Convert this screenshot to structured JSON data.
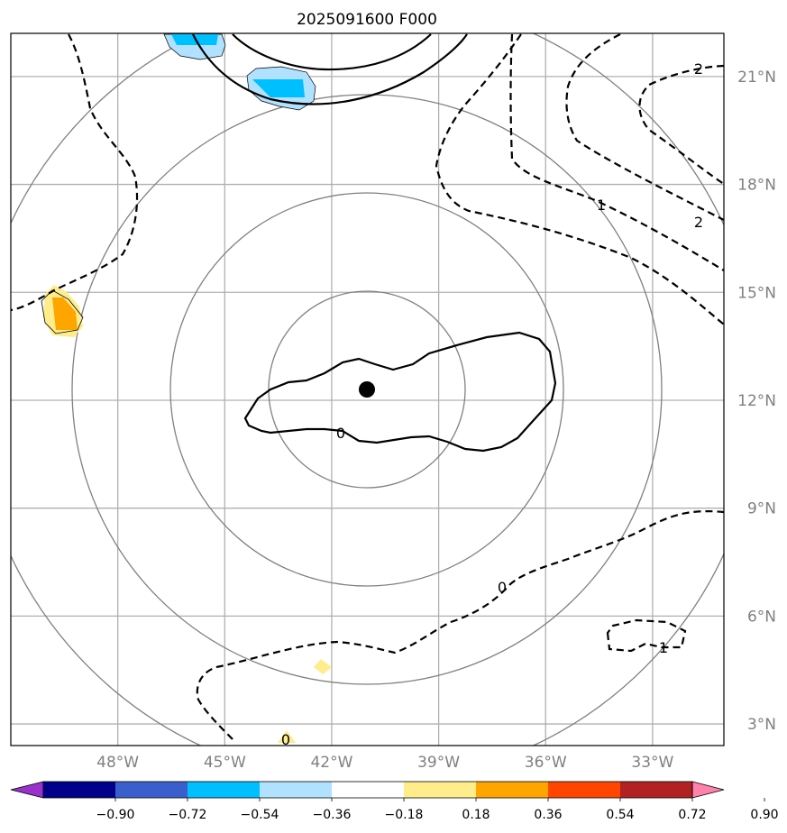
{
  "title": "2025091600 F000",
  "map": {
    "lat_labels": [
      "21°N",
      "18°N",
      "15°N",
      "12°N",
      "9°N",
      "6°N",
      "3°N"
    ],
    "lon_labels": [
      "48°W",
      "45°W",
      "42°W",
      "39°W",
      "36°W",
      "33°W"
    ],
    "lat_range": [
      2.4,
      22.2
    ],
    "lon_range": [
      -51,
      -31
    ],
    "gridlines": true,
    "center_marker": {
      "lon": -40.8,
      "lat": 12.3
    },
    "range_rings_deg": [
      2.75,
      5.5,
      8.25,
      11
    ],
    "contour_labels": [
      "0",
      "0",
      "1",
      "1",
      "2",
      "2",
      "0"
    ]
  },
  "colorbar": {
    "ticks": [
      "−0.90",
      "−0.72",
      "−0.54",
      "−0.36",
      "−0.18",
      "0.18",
      "0.36",
      "0.54",
      "0.72",
      "0.90"
    ],
    "colors": [
      "#9932cc",
      "#00008b",
      "#3a5fcd",
      "#00bfff",
      "#b0e2ff",
      "#ffffff",
      "#ffec8b",
      "#ffa500",
      "#ff4500",
      "#b22222",
      "#ff82ab"
    ]
  },
  "colors": {
    "grid": "#b0b0b0",
    "ring": "#808080",
    "tick_label": "#808080"
  }
}
